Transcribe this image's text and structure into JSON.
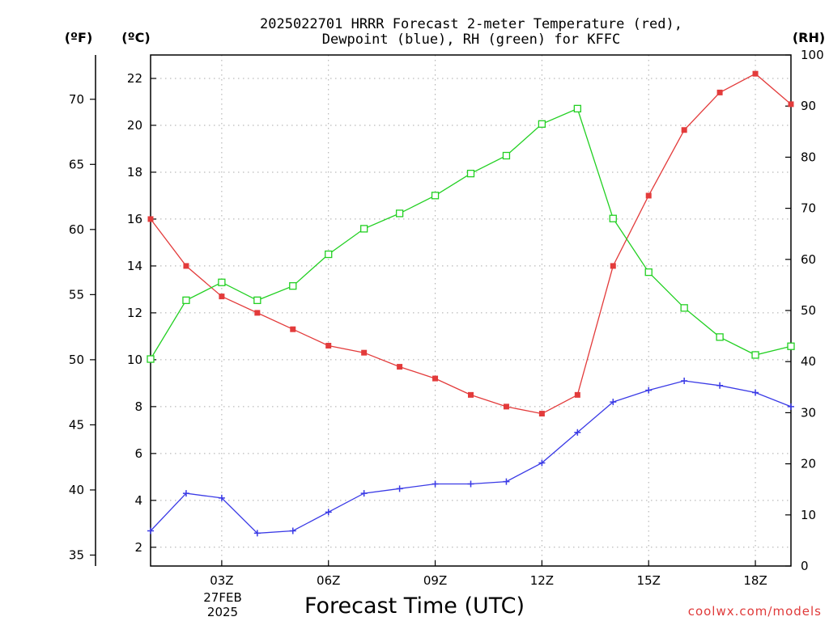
{
  "chart_data": {
    "type": "line",
    "title_line1": "2025022701 HRRR Forecast 2-meter Temperature (red),",
    "title_line2": "Dewpoint (blue), RH (green) for KFFC",
    "xlabel": "Forecast Time (UTC)",
    "date_line1": "27FEB",
    "date_line2": "2025",
    "credit": "coolwx.com/models",
    "units": {
      "fahrenheit": "(ºF)",
      "celsius": "(ºC)",
      "rh": "(RH)"
    },
    "x_hours": [
      1,
      2,
      3,
      4,
      5,
      6,
      7,
      8,
      9,
      10,
      11,
      12,
      13,
      14,
      15,
      16,
      17,
      18,
      19
    ],
    "x_ticks": [
      {
        "hour": 3,
        "label": "03Z"
      },
      {
        "hour": 6,
        "label": "06Z"
      },
      {
        "hour": 9,
        "label": "09Z"
      },
      {
        "hour": 12,
        "label": "12Z"
      },
      {
        "hour": 15,
        "label": "15Z"
      },
      {
        "hour": 18,
        "label": "18Z"
      }
    ],
    "xlim": [
      1,
      19
    ],
    "celsius_axis": {
      "range": [
        1.2,
        23.0
      ],
      "ticks": [
        2,
        4,
        6,
        8,
        10,
        12,
        14,
        16,
        18,
        20,
        22
      ]
    },
    "fahrenheit_axis": {
      "range": [
        34.16,
        73.4
      ],
      "ticks": [
        35,
        40,
        45,
        50,
        55,
        60,
        65,
        70
      ]
    },
    "rh_axis": {
      "range": [
        0,
        100
      ],
      "ticks": [
        0,
        10,
        20,
        30,
        40,
        50,
        60,
        70,
        80,
        90,
        100
      ]
    },
    "grid": true,
    "series": [
      {
        "key": "temperature",
        "color": "#e33b3b",
        "marker": "filled-square",
        "axis": "celsius",
        "values": [
          16.0,
          14.0,
          12.7,
          12.0,
          11.3,
          10.6,
          10.3,
          9.7,
          9.2,
          8.5,
          8.0,
          7.7,
          8.5,
          14.0,
          17.0,
          19.8,
          21.4,
          22.2,
          20.9
        ]
      },
      {
        "key": "dewpoint",
        "color": "#3a3ae6",
        "marker": "plus",
        "axis": "celsius",
        "values": [
          2.7,
          4.3,
          4.1,
          2.6,
          2.7,
          3.5,
          4.3,
          4.5,
          4.7,
          4.7,
          4.8,
          5.6,
          6.9,
          8.2,
          8.7,
          9.1,
          8.9,
          8.6,
          8.0
        ]
      },
      {
        "key": "rh",
        "color": "#22d022",
        "marker": "open-square",
        "axis": "rh",
        "values": [
          40.5,
          52.0,
          55.5,
          52.0,
          54.8,
          61.0,
          66.0,
          69.0,
          72.5,
          76.8,
          80.3,
          86.5,
          89.5,
          68.0,
          57.5,
          50.5,
          44.8,
          41.3,
          43.0
        ]
      }
    ]
  }
}
